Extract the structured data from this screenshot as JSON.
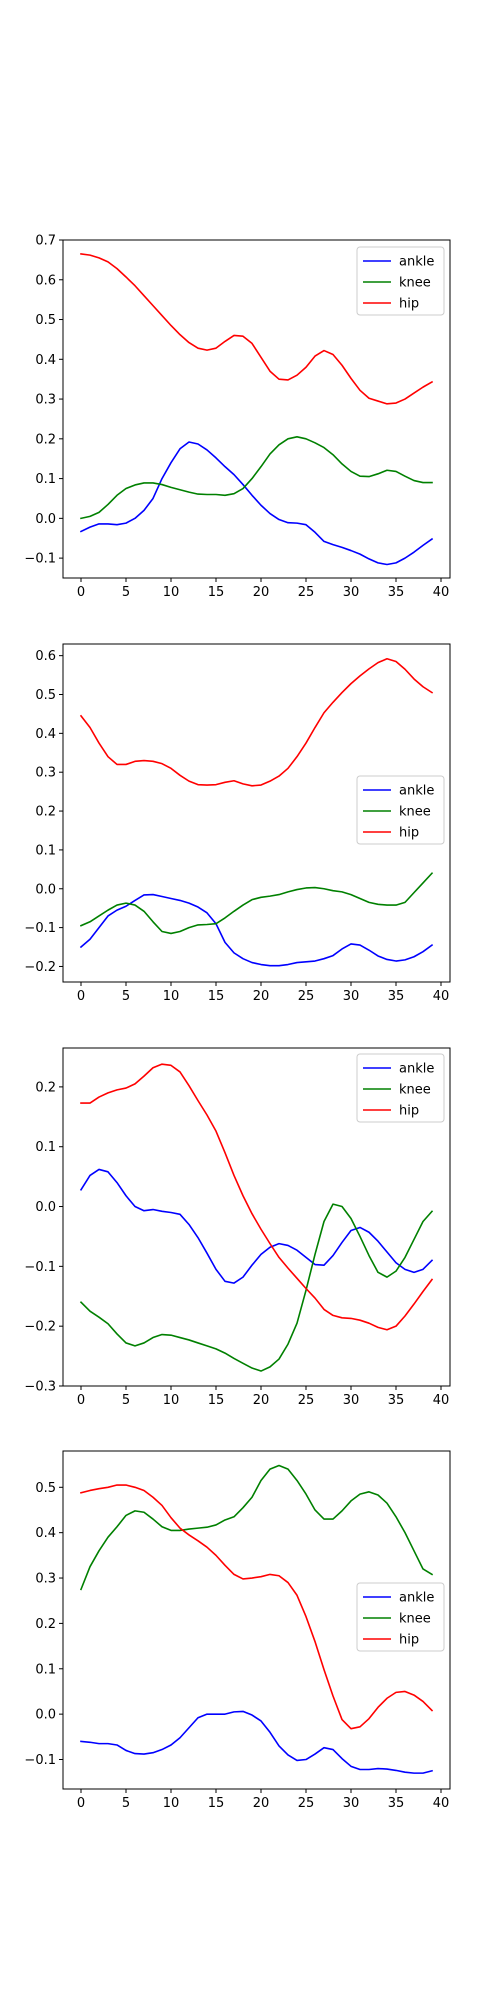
{
  "chart_data": [
    {
      "type": "line",
      "x": [
        0,
        1,
        2,
        3,
        4,
        5,
        6,
        7,
        8,
        9,
        10,
        11,
        12,
        13,
        14,
        15,
        16,
        17,
        18,
        19,
        20,
        21,
        22,
        23,
        24,
        25,
        26,
        27,
        28,
        29,
        30,
        31,
        32,
        33,
        34,
        35,
        36,
        37,
        38,
        39
      ],
      "xlim": [
        -2,
        41
      ],
      "ylim": [
        -0.15,
        0.7
      ],
      "xticks": [
        0,
        5,
        10,
        15,
        20,
        25,
        30,
        35,
        40
      ],
      "yticks": [
        -0.1,
        0.0,
        0.1,
        0.2,
        0.3,
        0.4,
        0.5,
        0.6,
        0.7
      ],
      "ytick_labels": [
        "−0.1",
        "0.0",
        "0.1",
        "0.2",
        "0.3",
        "0.4",
        "0.5",
        "0.6",
        "0.7"
      ],
      "legend_position": "top-right",
      "series": [
        {
          "name": "ankle",
          "color": "#0000ff",
          "values": [
            -0.033,
            -0.022,
            -0.014,
            -0.014,
            -0.016,
            -0.012,
            0.0,
            0.02,
            0.05,
            0.1,
            0.14,
            0.175,
            0.192,
            0.187,
            0.172,
            0.152,
            0.13,
            0.11,
            0.085,
            0.058,
            0.033,
            0.012,
            -0.003,
            -0.011,
            -0.012,
            -0.016,
            -0.035,
            -0.058,
            -0.066,
            -0.073,
            -0.081,
            -0.09,
            -0.102,
            -0.112,
            -0.116,
            -0.112,
            -0.1,
            -0.085,
            -0.068,
            -0.052
          ]
        },
        {
          "name": "knee",
          "color": "#008000",
          "values": [
            0.0,
            0.005,
            0.015,
            0.035,
            0.058,
            0.075,
            0.084,
            0.089,
            0.089,
            0.085,
            0.078,
            0.072,
            0.066,
            0.061,
            0.06,
            0.06,
            0.058,
            0.062,
            0.075,
            0.1,
            0.13,
            0.162,
            0.185,
            0.2,
            0.205,
            0.2,
            0.19,
            0.178,
            0.16,
            0.137,
            0.118,
            0.106,
            0.105,
            0.112,
            0.121,
            0.118,
            0.106,
            0.095,
            0.09,
            0.09
          ]
        },
        {
          "name": "hip",
          "color": "#ff0000",
          "values": [
            0.665,
            0.662,
            0.655,
            0.645,
            0.628,
            0.607,
            0.585,
            0.56,
            0.535,
            0.51,
            0.485,
            0.462,
            0.442,
            0.428,
            0.423,
            0.428,
            0.445,
            0.46,
            0.458,
            0.44,
            0.405,
            0.37,
            0.35,
            0.348,
            0.36,
            0.38,
            0.408,
            0.422,
            0.412,
            0.385,
            0.352,
            0.322,
            0.302,
            0.295,
            0.288,
            0.29,
            0.3,
            0.315,
            0.33,
            0.343
          ]
        }
      ]
    },
    {
      "type": "line",
      "x": [
        0,
        1,
        2,
        3,
        4,
        5,
        6,
        7,
        8,
        9,
        10,
        11,
        12,
        13,
        14,
        15,
        16,
        17,
        18,
        19,
        20,
        21,
        22,
        23,
        24,
        25,
        26,
        27,
        28,
        29,
        30,
        31,
        32,
        33,
        34,
        35,
        36,
        37,
        38,
        39
      ],
      "xlim": [
        -2,
        41
      ],
      "ylim": [
        -0.24,
        0.63
      ],
      "xticks": [
        0,
        5,
        10,
        15,
        20,
        25,
        30,
        35,
        40
      ],
      "yticks": [
        -0.2,
        -0.1,
        0.0,
        0.1,
        0.2,
        0.3,
        0.4,
        0.5,
        0.6
      ],
      "ytick_labels": [
        "−0.2",
        "−0.1",
        "0.0",
        "0.1",
        "0.2",
        "0.3",
        "0.4",
        "0.5",
        "0.6"
      ],
      "legend_position": "center-right",
      "series": [
        {
          "name": "ankle",
          "color": "#0000ff",
          "values": [
            -0.15,
            -0.13,
            -0.1,
            -0.07,
            -0.055,
            -0.045,
            -0.03,
            -0.016,
            -0.015,
            -0.02,
            -0.025,
            -0.03,
            -0.037,
            -0.047,
            -0.062,
            -0.09,
            -0.138,
            -0.165,
            -0.18,
            -0.19,
            -0.195,
            -0.198,
            -0.198,
            -0.195,
            -0.19,
            -0.188,
            -0.186,
            -0.18,
            -0.172,
            -0.155,
            -0.142,
            -0.145,
            -0.158,
            -0.173,
            -0.182,
            -0.186,
            -0.183,
            -0.175,
            -0.162,
            -0.145
          ]
        },
        {
          "name": "knee",
          "color": "#008000",
          "values": [
            -0.095,
            -0.085,
            -0.07,
            -0.055,
            -0.042,
            -0.037,
            -0.042,
            -0.058,
            -0.085,
            -0.11,
            -0.115,
            -0.11,
            -0.1,
            -0.093,
            -0.092,
            -0.09,
            -0.075,
            -0.058,
            -0.042,
            -0.028,
            -0.022,
            -0.019,
            -0.015,
            -0.008,
            -0.002,
            0.002,
            0.003,
            0.0,
            -0.005,
            -0.008,
            -0.015,
            -0.025,
            -0.035,
            -0.04,
            -0.042,
            -0.042,
            -0.035,
            -0.01,
            0.015,
            0.04
          ]
        },
        {
          "name": "hip",
          "color": "#ff0000",
          "values": [
            0.445,
            0.415,
            0.375,
            0.34,
            0.32,
            0.32,
            0.328,
            0.33,
            0.328,
            0.322,
            0.31,
            0.292,
            0.277,
            0.268,
            0.267,
            0.268,
            0.274,
            0.278,
            0.27,
            0.265,
            0.267,
            0.277,
            0.29,
            0.31,
            0.34,
            0.375,
            0.415,
            0.453,
            0.48,
            0.505,
            0.528,
            0.548,
            0.566,
            0.582,
            0.592,
            0.585,
            0.565,
            0.54,
            0.52,
            0.505
          ]
        }
      ]
    },
    {
      "type": "line",
      "x": [
        0,
        1,
        2,
        3,
        4,
        5,
        6,
        7,
        8,
        9,
        10,
        11,
        12,
        13,
        14,
        15,
        16,
        17,
        18,
        19,
        20,
        21,
        22,
        23,
        24,
        25,
        26,
        27,
        28,
        29,
        30,
        31,
        32,
        33,
        34,
        35,
        36,
        37,
        38,
        39
      ],
      "xlim": [
        -2,
        41
      ],
      "ylim": [
        -0.3,
        0.265
      ],
      "xticks": [
        0,
        5,
        10,
        15,
        20,
        25,
        30,
        35,
        40
      ],
      "yticks": [
        -0.3,
        -0.2,
        -0.1,
        0.0,
        0.1,
        0.2
      ],
      "ytick_labels": [
        "−0.3",
        "−0.2",
        "−0.1",
        "0.0",
        "0.1",
        "0.2"
      ],
      "legend_position": "top-right",
      "series": [
        {
          "name": "ankle",
          "color": "#0000ff",
          "values": [
            0.028,
            0.052,
            0.062,
            0.058,
            0.04,
            0.018,
            0.0,
            -0.007,
            -0.005,
            -0.008,
            -0.01,
            -0.013,
            -0.03,
            -0.052,
            -0.078,
            -0.105,
            -0.125,
            -0.128,
            -0.118,
            -0.098,
            -0.08,
            -0.068,
            -0.062,
            -0.065,
            -0.073,
            -0.085,
            -0.097,
            -0.098,
            -0.082,
            -0.06,
            -0.04,
            -0.035,
            -0.043,
            -0.058,
            -0.076,
            -0.094,
            -0.105,
            -0.11,
            -0.105,
            -0.09
          ]
        },
        {
          "name": "knee",
          "color": "#008000",
          "values": [
            -0.16,
            -0.175,
            -0.185,
            -0.196,
            -0.213,
            -0.228,
            -0.233,
            -0.228,
            -0.219,
            -0.214,
            -0.215,
            -0.219,
            -0.223,
            -0.228,
            -0.233,
            -0.238,
            -0.245,
            -0.254,
            -0.262,
            -0.27,
            -0.275,
            -0.268,
            -0.255,
            -0.23,
            -0.195,
            -0.14,
            -0.08,
            -0.025,
            0.004,
            0.0,
            -0.02,
            -0.05,
            -0.082,
            -0.11,
            -0.118,
            -0.108,
            -0.085,
            -0.055,
            -0.025,
            -0.008
          ]
        },
        {
          "name": "hip",
          "color": "#ff0000",
          "values": [
            0.173,
            0.173,
            0.183,
            0.19,
            0.195,
            0.198,
            0.205,
            0.218,
            0.232,
            0.238,
            0.236,
            0.225,
            0.202,
            0.177,
            0.153,
            0.126,
            0.09,
            0.052,
            0.018,
            -0.012,
            -0.038,
            -0.062,
            -0.085,
            -0.103,
            -0.12,
            -0.137,
            -0.153,
            -0.172,
            -0.182,
            -0.186,
            -0.187,
            -0.19,
            -0.195,
            -0.202,
            -0.206,
            -0.2,
            -0.183,
            -0.163,
            -0.142,
            -0.122
          ]
        }
      ]
    },
    {
      "type": "line",
      "x": [
        0,
        1,
        2,
        3,
        4,
        5,
        6,
        7,
        8,
        9,
        10,
        11,
        12,
        13,
        14,
        15,
        16,
        17,
        18,
        19,
        20,
        21,
        22,
        23,
        24,
        25,
        26,
        27,
        28,
        29,
        30,
        31,
        32,
        33,
        34,
        35,
        36,
        37,
        38,
        39
      ],
      "xlim": [
        -2,
        41
      ],
      "ylim": [
        -0.165,
        0.58
      ],
      "xticks": [
        0,
        5,
        10,
        15,
        20,
        25,
        30,
        35,
        40
      ],
      "yticks": [
        -0.1,
        0.0,
        0.1,
        0.2,
        0.3,
        0.4,
        0.5
      ],
      "ytick_labels": [
        "−0.1",
        "0.0",
        "0.1",
        "0.2",
        "0.3",
        "0.4",
        "0.5"
      ],
      "legend_position": "center-right",
      "series": [
        {
          "name": "ankle",
          "color": "#0000ff",
          "values": [
            -0.06,
            -0.062,
            -0.065,
            -0.065,
            -0.068,
            -0.08,
            -0.087,
            -0.088,
            -0.085,
            -0.078,
            -0.068,
            -0.052,
            -0.03,
            -0.008,
            0.0,
            0.0,
            0.0,
            0.005,
            0.006,
            -0.002,
            -0.015,
            -0.04,
            -0.07,
            -0.09,
            -0.102,
            -0.1,
            -0.088,
            -0.074,
            -0.078,
            -0.098,
            -0.115,
            -0.122,
            -0.122,
            -0.12,
            -0.121,
            -0.124,
            -0.128,
            -0.13,
            -0.13,
            -0.125
          ]
        },
        {
          "name": "knee",
          "color": "#008000",
          "values": [
            0.275,
            0.325,
            0.36,
            0.39,
            0.413,
            0.438,
            0.448,
            0.445,
            0.43,
            0.413,
            0.405,
            0.405,
            0.408,
            0.41,
            0.412,
            0.417,
            0.428,
            0.435,
            0.455,
            0.478,
            0.515,
            0.54,
            0.548,
            0.54,
            0.515,
            0.485,
            0.45,
            0.43,
            0.43,
            0.448,
            0.47,
            0.485,
            0.49,
            0.483,
            0.465,
            0.435,
            0.4,
            0.36,
            0.32,
            0.308
          ]
        },
        {
          "name": "hip",
          "color": "#ff0000",
          "values": [
            0.488,
            0.493,
            0.497,
            0.5,
            0.505,
            0.505,
            0.5,
            0.493,
            0.478,
            0.46,
            0.433,
            0.41,
            0.395,
            0.382,
            0.368,
            0.35,
            0.328,
            0.308,
            0.298,
            0.3,
            0.303,
            0.308,
            0.305,
            0.29,
            0.262,
            0.215,
            0.16,
            0.098,
            0.04,
            -0.012,
            -0.032,
            -0.028,
            -0.01,
            0.015,
            0.035,
            0.048,
            0.05,
            0.042,
            0.028,
            0.008
          ]
        }
      ]
    }
  ]
}
